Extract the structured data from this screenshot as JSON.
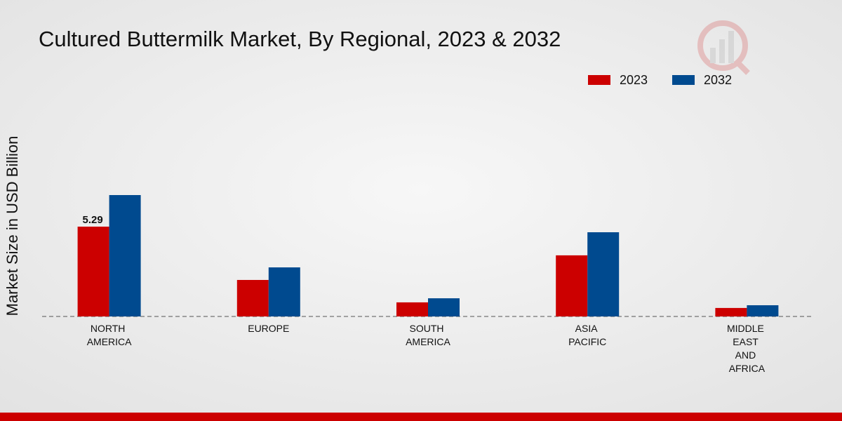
{
  "chart_data": {
    "type": "bar",
    "title": "Cultured Buttermilk Market, By Regional, 2023 & 2032",
    "y_label": "Market Size in USD Billion",
    "categories": [
      "NORTH AMERICA",
      "EUROPE",
      "SOUTH AMERICA",
      "ASIA PACIFIC",
      "MIDDLE EAST AND AFRICA"
    ],
    "series": [
      {
        "name": "2023",
        "color": "#cc0000",
        "values": [
          5.29,
          2.15,
          0.83,
          3.6,
          0.5
        ],
        "value_labels": [
          "5.29",
          null,
          null,
          null,
          null
        ]
      },
      {
        "name": "2032",
        "color": "#004a8f",
        "values": [
          7.15,
          2.89,
          1.07,
          4.96,
          0.66
        ]
      }
    ],
    "legend": "top-right"
  }
}
